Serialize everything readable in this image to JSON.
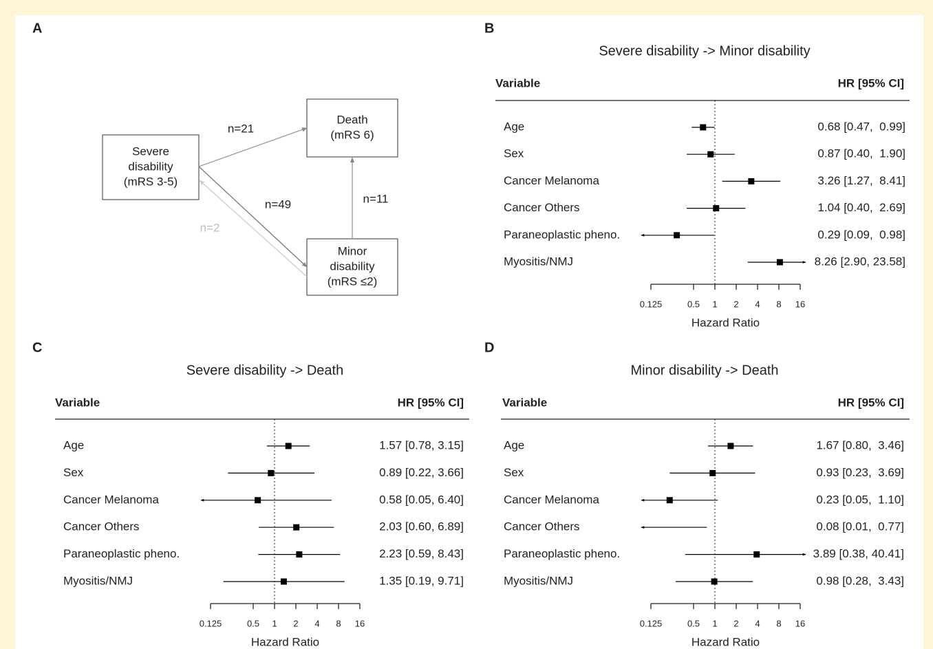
{
  "diagram": {
    "panel": "A",
    "nodes": [
      {
        "lines": [
          "Severe",
          "disability",
          "(mRS 3-5)"
        ]
      },
      {
        "lines": [
          "Death",
          "(mRS 6)"
        ]
      },
      {
        "lines": [
          "Minor",
          "disability",
          "(mRS ≤2)"
        ]
      }
    ],
    "edges": [
      {
        "from": 0,
        "to": 1,
        "label": "n=21"
      },
      {
        "from": 0,
        "to": 2,
        "label": "n=49"
      },
      {
        "from": 2,
        "to": 1,
        "label": "n=11"
      },
      {
        "from": 2,
        "to": 0,
        "label": "n=2"
      }
    ]
  },
  "chart_data": [
    {
      "type": "forest",
      "panel": "B",
      "title": "Severe disability -> Minor disability",
      "columns": [
        "Variable",
        "HR [95% CI]"
      ],
      "categories": [
        "Age",
        "Sex",
        "Cancer Melanoma",
        "Cancer Others",
        "Paraneoplastic pheno.",
        "Myositis/NMJ"
      ],
      "values": [
        0.68,
        0.87,
        3.26,
        1.04,
        0.29,
        8.26
      ],
      "lower": [
        0.47,
        0.4,
        1.27,
        0.4,
        0.09,
        2.9
      ],
      "upper": [
        0.99,
        1.9,
        8.41,
        2.69,
        0.98,
        23.58
      ],
      "value_labels": [
        "0.68 [0.47,  0.99]",
        "0.87 [0.40,  1.90]",
        "3.26 [1.27,  8.41]",
        "1.04 [0.40,  2.69]",
        "0.29 [0.09,  0.98]",
        "8.26 [2.90, 23.58]"
      ],
      "xlabel": "Hazard Ratio",
      "xlog": true,
      "xlim": [
        0.125,
        16
      ],
      "xticks": [
        0.125,
        0.5,
        1,
        2,
        4,
        8,
        16
      ],
      "reference_line": 1,
      "color": "#000000"
    },
    {
      "type": "forest",
      "panel": "C",
      "title": "Severe disability -> Death",
      "columns": [
        "Variable",
        "HR [95% CI]"
      ],
      "categories": [
        "Age",
        "Sex",
        "Cancer Melanoma",
        "Cancer Others",
        "Paraneoplastic pheno.",
        "Myositis/NMJ"
      ],
      "values": [
        1.57,
        0.89,
        0.58,
        2.03,
        2.23,
        1.35
      ],
      "lower": [
        0.78,
        0.22,
        0.05,
        0.6,
        0.59,
        0.19
      ],
      "upper": [
        3.15,
        3.66,
        6.4,
        6.89,
        8.43,
        9.71
      ],
      "value_labels": [
        "1.57 [0.78, 3.15]",
        "0.89 [0.22, 3.66]",
        "0.58 [0.05, 6.40]",
        "2.03 [0.60, 6.89]",
        "2.23 [0.59, 8.43]",
        "1.35 [0.19, 9.71]"
      ],
      "xlabel": "Hazard Ratio",
      "xlog": true,
      "xlim": [
        0.125,
        16
      ],
      "xticks": [
        0.125,
        0.5,
        1,
        2,
        4,
        8,
        16
      ],
      "reference_line": 1,
      "color": "#000000"
    },
    {
      "type": "forest",
      "panel": "D",
      "title": "Minor disability -> Death",
      "columns": [
        "Variable",
        "HR [95% CI]"
      ],
      "categories": [
        "Age",
        "Sex",
        "Cancer Melanoma",
        "Cancer Others",
        "Paraneoplastic pheno.",
        "Myositis/NMJ"
      ],
      "values": [
        1.67,
        0.93,
        0.23,
        0.08,
        3.89,
        0.98
      ],
      "lower": [
        0.8,
        0.23,
        0.05,
        0.01,
        0.38,
        0.28
      ],
      "upper": [
        3.46,
        3.69,
        1.1,
        0.77,
        40.41,
        3.43
      ],
      "value_labels": [
        "1.67 [0.80,  3.46]",
        "0.93 [0.23,  3.69]",
        "0.23 [0.05,  1.10]",
        "0.08 [0.01,  0.77]",
        "3.89 [0.38, 40.41]",
        "0.98 [0.28,  3.43]"
      ],
      "xlabel": "Hazard Ratio",
      "xlog": true,
      "xlim": [
        0.125,
        16
      ],
      "xticks": [
        0.125,
        0.5,
        1,
        2,
        4,
        8,
        16
      ],
      "reference_line": 1,
      "color": "#000000"
    }
  ]
}
